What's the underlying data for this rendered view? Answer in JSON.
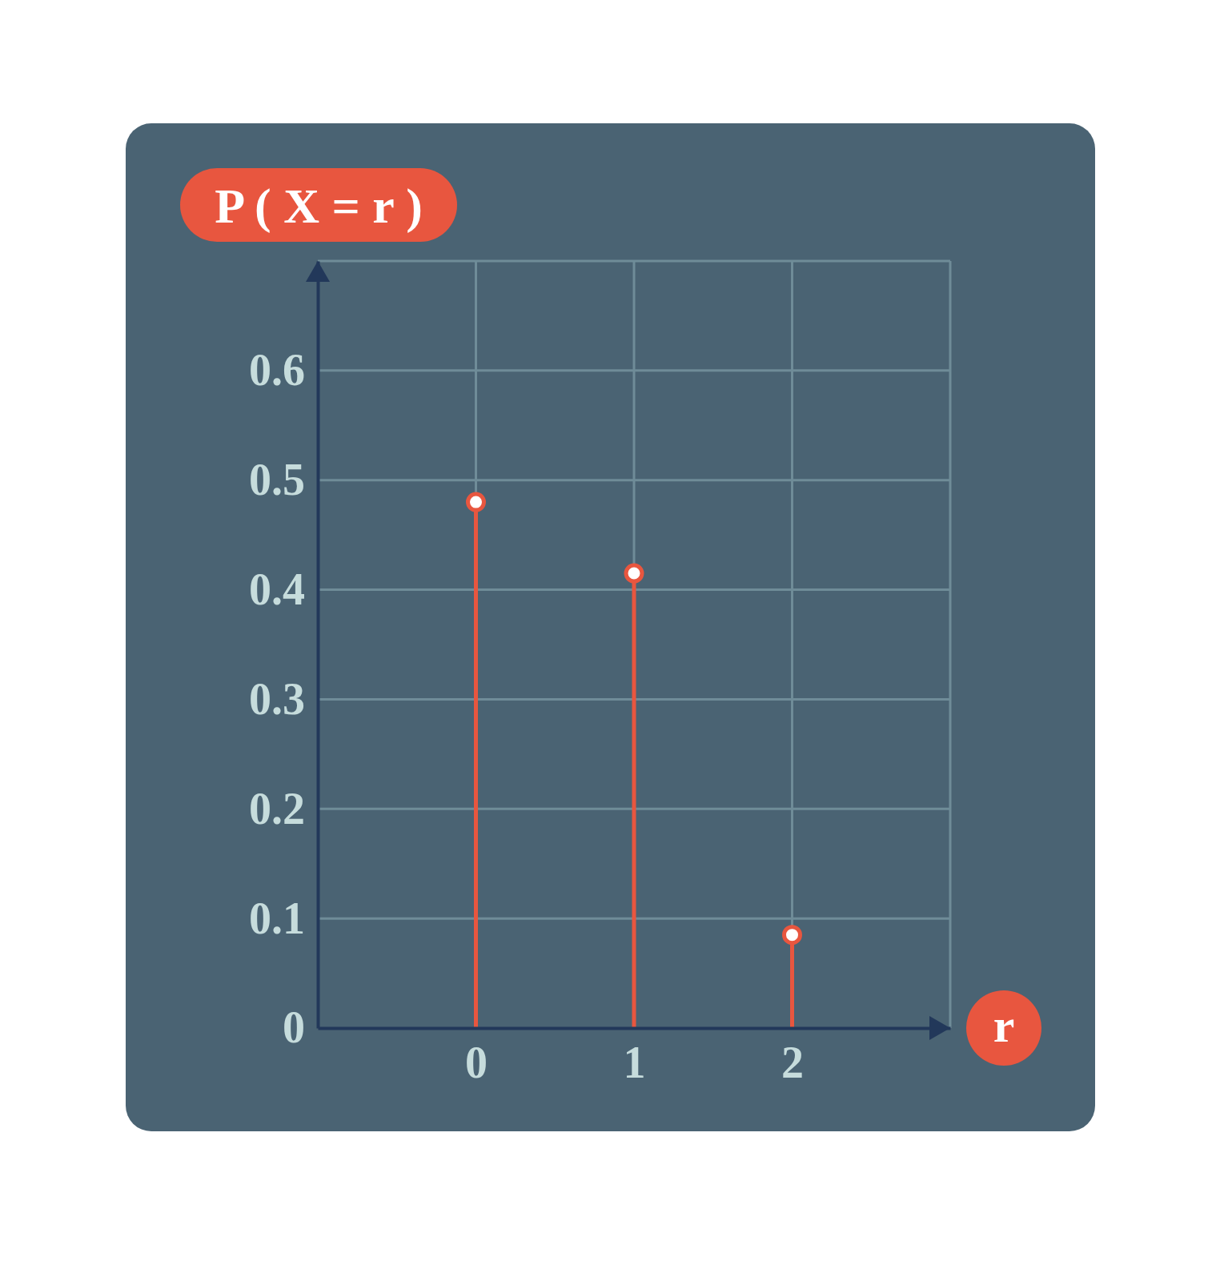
{
  "chart_data": {
    "type": "stem",
    "title": "P ( X = r )",
    "x_label": "r",
    "x": [
      0,
      1,
      2
    ],
    "values": [
      0.48,
      0.415,
      0.085
    ],
    "color": "#e8563f",
    "marker": "circle",
    "xlim": [
      -1,
      3
    ],
    "xticks": [
      0,
      1,
      2
    ],
    "ylim": [
      0,
      0.7
    ],
    "yticks": [
      0,
      0.1,
      0.2,
      0.3,
      0.4,
      0.5,
      0.6
    ],
    "grid": true
  }
}
